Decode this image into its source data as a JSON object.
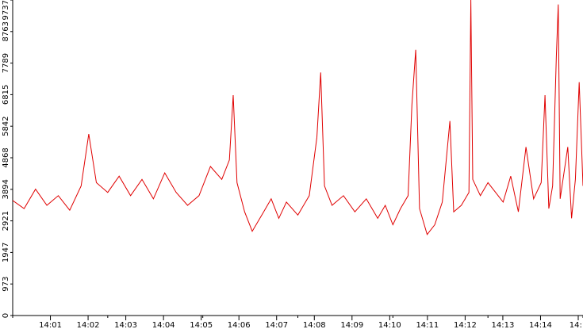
{
  "chart_data": {
    "type": "line",
    "title": "",
    "xlabel": "",
    "ylabel": "",
    "grid": false,
    "legend": "none",
    "ylim": [
      0,
      9737
    ],
    "xlim_minutes": [
      14.0,
      15.0
    ],
    "y_ticks": [
      "0",
      "973",
      "1947",
      "2921",
      "3894",
      "4868",
      "5842",
      "6815",
      "7789",
      "8763",
      "9737"
    ],
    "x_ticks": [
      "14:01",
      "14:02",
      "14:03",
      "14:04",
      "14:05",
      "14:06",
      "14:07",
      "14:08",
      "14:09",
      "14:10",
      "14:11",
      "14:12",
      "14:13",
      "14:14",
      "14:1"
    ],
    "x_tick_minutes": [
      1,
      2,
      3,
      4,
      5,
      6,
      7,
      8,
      9,
      10,
      11,
      12,
      13,
      14,
      15
    ],
    "series": [
      {
        "color": "#e00000",
        "points": [
          [
            0.0,
            3550
          ],
          [
            0.3,
            3300
          ],
          [
            0.6,
            3900
          ],
          [
            0.9,
            3400
          ],
          [
            1.2,
            3700
          ],
          [
            1.5,
            3250
          ],
          [
            1.8,
            4000
          ],
          [
            2.0,
            5600
          ],
          [
            2.2,
            4100
          ],
          [
            2.5,
            3800
          ],
          [
            2.8,
            4300
          ],
          [
            3.1,
            3700
          ],
          [
            3.4,
            4200
          ],
          [
            3.7,
            3600
          ],
          [
            4.0,
            4400
          ],
          [
            4.3,
            3800
          ],
          [
            4.6,
            3400
          ],
          [
            4.9,
            3700
          ],
          [
            5.2,
            4600
          ],
          [
            5.5,
            4200
          ],
          [
            5.7,
            4800
          ],
          [
            5.8,
            6800
          ],
          [
            5.9,
            4100
          ],
          [
            6.1,
            3200
          ],
          [
            6.3,
            2600
          ],
          [
            6.6,
            3200
          ],
          [
            6.8,
            3600
          ],
          [
            7.0,
            3000
          ],
          [
            7.2,
            3500
          ],
          [
            7.5,
            3100
          ],
          [
            7.8,
            3700
          ],
          [
            8.0,
            5500
          ],
          [
            8.1,
            7500
          ],
          [
            8.2,
            4000
          ],
          [
            8.4,
            3400
          ],
          [
            8.7,
            3700
          ],
          [
            9.0,
            3200
          ],
          [
            9.3,
            3600
          ],
          [
            9.6,
            3000
          ],
          [
            9.8,
            3400
          ],
          [
            10.0,
            2800
          ],
          [
            10.2,
            3300
          ],
          [
            10.4,
            3700
          ],
          [
            10.5,
            6500
          ],
          [
            10.6,
            8200
          ],
          [
            10.7,
            3300
          ],
          [
            10.9,
            2500
          ],
          [
            11.1,
            2800
          ],
          [
            11.3,
            3500
          ],
          [
            11.5,
            6000
          ],
          [
            11.6,
            3200
          ],
          [
            11.8,
            3400
          ],
          [
            12.0,
            3800
          ],
          [
            12.05,
            9737
          ],
          [
            12.1,
            4200
          ],
          [
            12.3,
            3700
          ],
          [
            12.5,
            4100
          ],
          [
            12.7,
            3800
          ],
          [
            12.9,
            3500
          ],
          [
            13.1,
            4300
          ],
          [
            13.3,
            3200
          ],
          [
            13.5,
            5200
          ],
          [
            13.7,
            3600
          ],
          [
            13.9,
            4100
          ],
          [
            14.0,
            6800
          ],
          [
            14.1,
            3300
          ],
          [
            14.2,
            4000
          ],
          [
            14.3,
            8000
          ],
          [
            14.35,
            9600
          ],
          [
            14.4,
            3600
          ],
          [
            14.6,
            5200
          ],
          [
            14.7,
            3000
          ],
          [
            14.8,
            4200
          ],
          [
            14.9,
            7200
          ],
          [
            15.0,
            4000
          ]
        ]
      }
    ]
  }
}
